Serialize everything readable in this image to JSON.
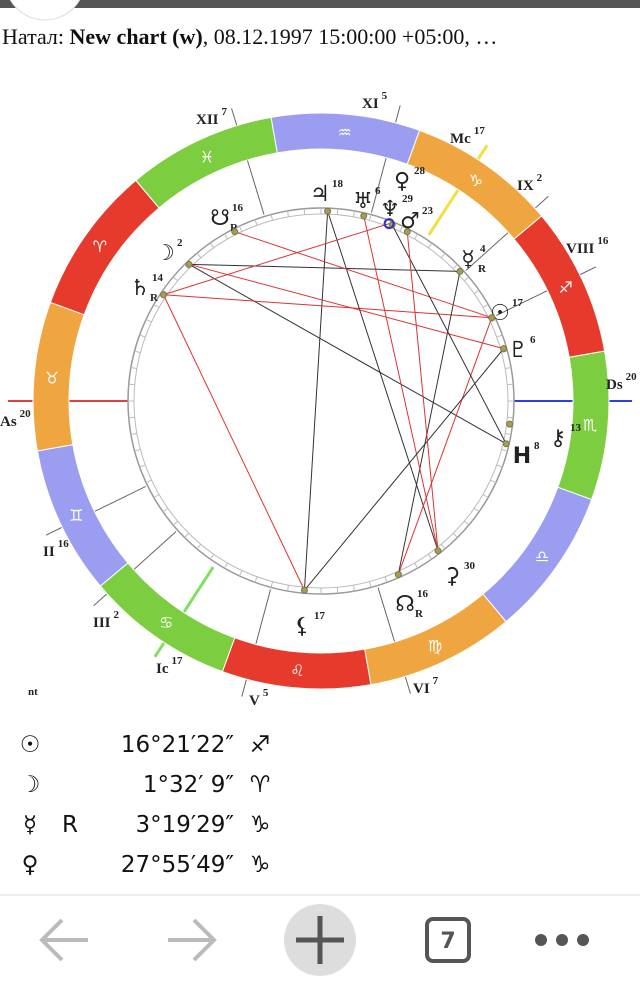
{
  "header": {
    "prefix": "Натал:",
    "name": "New chart (w)",
    "details": ", 08.12.1997 15:00:00 +05:00, …"
  },
  "chart": {
    "signs": [
      "♈",
      "♉",
      "♊",
      "♋",
      "♌",
      "♍",
      "♎",
      "♏",
      "♐",
      "♑",
      "♒",
      "♓"
    ],
    "houses": [
      {
        "label": "XII",
        "degree": 7
      },
      {
        "label": "XI",
        "degree": 5
      },
      {
        "label": "Mc",
        "degree": 17
      },
      {
        "label": "IX",
        "degree": 2
      },
      {
        "label": "VIII",
        "degree": 16
      },
      {
        "label": "Ds",
        "degree": 20
      },
      {
        "label": "VI",
        "degree": 7
      },
      {
        "label": "V",
        "degree": 5
      },
      {
        "label": "Ic",
        "degree": 17
      },
      {
        "label": "III",
        "degree": 2
      },
      {
        "label": "II",
        "degree": 16
      },
      {
        "label": "As",
        "degree": 20
      }
    ],
    "planets": [
      {
        "glyph": "♃",
        "degree": 18
      },
      {
        "glyph": "♅",
        "degree": 6
      },
      {
        "glyph": "♀",
        "degree": 28
      },
      {
        "glyph": "♆",
        "degree": 29
      },
      {
        "glyph": "♂",
        "degree": 23
      },
      {
        "glyph": "☿",
        "degree": 4,
        "retro": "R"
      },
      {
        "glyph": "☉",
        "degree": 17
      },
      {
        "glyph": "♇",
        "degree": 6
      },
      {
        "glyph": "⚷",
        "degree": 13
      },
      {
        "glyph": "H",
        "degree": 8
      },
      {
        "glyph": "⚳",
        "degree": 30
      },
      {
        "glyph": "☊",
        "degree": 16,
        "retro": "R"
      },
      {
        "glyph": "⚸",
        "degree": 17
      },
      {
        "glyph": "☽",
        "degree": 2
      },
      {
        "glyph": "♄",
        "degree": 14,
        "retro": "R"
      },
      {
        "glyph": "☋",
        "degree": 16,
        "retro": "R"
      }
    ],
    "note": "nt"
  },
  "positions": [
    {
      "glyph": "☉",
      "degrees": "16°21′22″",
      "sign": "♐"
    },
    {
      "glyph": "☽",
      "degrees": "1°32′ 9″",
      "sign": "♈"
    },
    {
      "glyph": "☿",
      "retro": "R",
      "degrees": "3°19′29″",
      "sign": "♑"
    },
    {
      "glyph": "♀",
      "degrees": "27°55′49″",
      "sign": "♑"
    }
  ],
  "nav": {
    "tabs": "7"
  }
}
